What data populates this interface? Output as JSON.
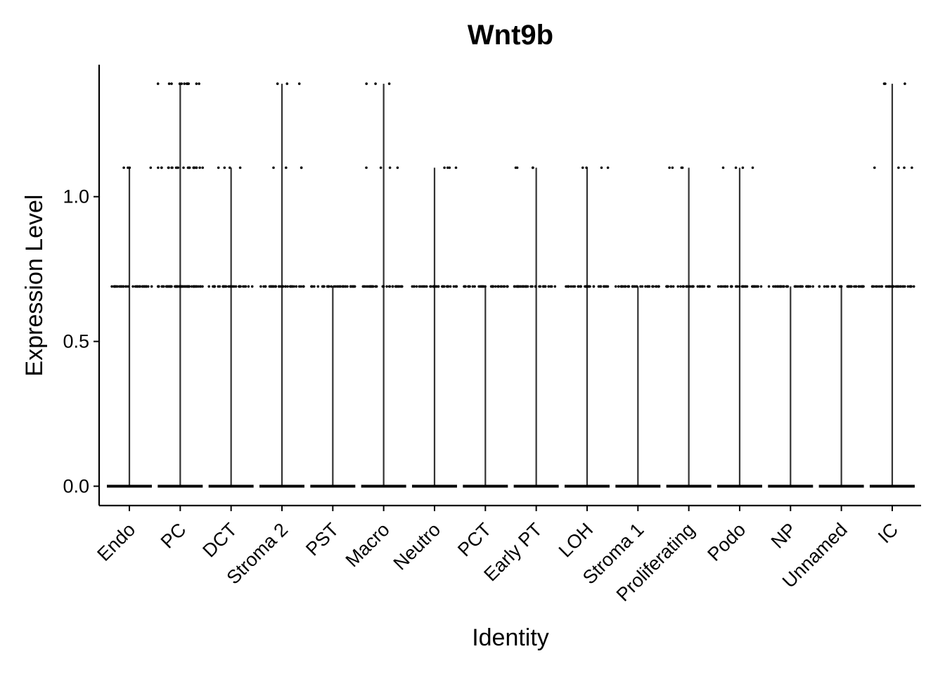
{
  "chart_data": {
    "type": "violin",
    "title": "Wnt9b",
    "xlabel": "Identity",
    "ylabel": "Expression Level",
    "ylim": [
      -0.066,
      1.415
    ],
    "yticks": [
      0.0,
      0.5,
      1.0
    ],
    "ytick_labels": [
      "0.0",
      "0.5",
      "1.0"
    ],
    "categories": [
      "Endo",
      "PC",
      "DCT",
      "Stroma 2",
      "PST",
      "Macro",
      "Neutro",
      "PCT",
      "Early PT",
      "LOH",
      "Stroma 1",
      "Proliferating",
      "Podo",
      "NP",
      "Unnamed",
      "IC"
    ],
    "max_expression": [
      1.1,
      1.39,
      1.1,
      1.39,
      0.69,
      1.39,
      1.1,
      0.69,
      1.1,
      1.1,
      0.69,
      1.1,
      1.1,
      0.69,
      0.69,
      1.39
    ],
    "point_levels": [
      {
        "category": "Endo",
        "levels": [
          0.0,
          0.69,
          1.1
        ]
      },
      {
        "category": "PC",
        "levels": [
          0.0,
          0.69,
          1.1,
          1.39
        ]
      },
      {
        "category": "DCT",
        "levels": [
          0.0,
          0.69,
          1.1
        ]
      },
      {
        "category": "Stroma 2",
        "levels": [
          0.0,
          0.69,
          1.1,
          1.39
        ]
      },
      {
        "category": "PST",
        "levels": [
          0.0,
          0.69
        ]
      },
      {
        "category": "Macro",
        "levels": [
          0.0,
          0.69,
          1.1,
          1.39
        ]
      },
      {
        "category": "Neutro",
        "levels": [
          0.0,
          0.69,
          1.1
        ]
      },
      {
        "category": "PCT",
        "levels": [
          0.0,
          0.69
        ]
      },
      {
        "category": "Early PT",
        "levels": [
          0.0,
          0.69,
          1.1
        ]
      },
      {
        "category": "LOH",
        "levels": [
          0.0,
          0.69,
          1.1
        ]
      },
      {
        "category": "Stroma 1",
        "levels": [
          0.0,
          0.69
        ]
      },
      {
        "category": "Proliferating",
        "levels": [
          0.0,
          0.69,
          1.1
        ]
      },
      {
        "category": "Podo",
        "levels": [
          0.0,
          0.69,
          1.1
        ]
      },
      {
        "category": "NP",
        "levels": [
          0.0,
          0.69
        ]
      },
      {
        "category": "Unnamed",
        "levels": [
          0.0,
          0.69
        ]
      },
      {
        "category": "IC",
        "levels": [
          0.0,
          0.69,
          1.1,
          1.39
        ]
      }
    ],
    "colors": {
      "violin": "#333333",
      "points": "#000000",
      "axis": "#000000"
    },
    "grid": false,
    "legend": "none"
  }
}
